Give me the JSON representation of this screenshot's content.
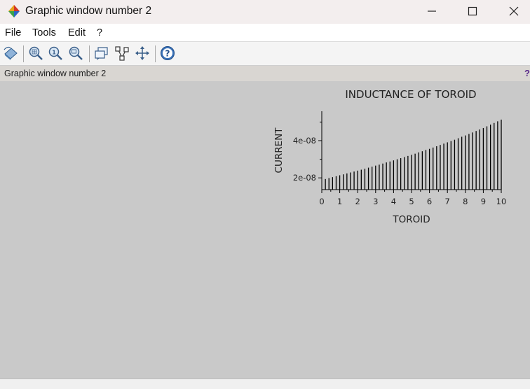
{
  "window": {
    "title": "Graphic window number 2"
  },
  "menu": {
    "items": [
      "File",
      "Tools",
      "Edit",
      "?"
    ]
  },
  "toolbar": {
    "icons": [
      "rotate-icon",
      "zoom-area-icon",
      "zoom-original-icon",
      "zoom-out-icon",
      "datatip-icon",
      "edit-plot-icon",
      "pan-icon",
      "help-icon"
    ]
  },
  "infobar": {
    "text": "Graphic window number 2",
    "help_glyph": "?"
  },
  "chart_data": {
    "type": "bar",
    "style": "stem",
    "title": "INDUCTANCE OF TOROID",
    "xlabel": "TOROID",
    "ylabel": "CURRENT",
    "xlim": [
      0,
      10
    ],
    "x_ticks": [
      0,
      1,
      2,
      3,
      4,
      5,
      6,
      7,
      8,
      9,
      10
    ],
    "y_ticks": [
      2e-08,
      4e-08
    ],
    "y_tick_labels": [
      "2e-08",
      "4e-08"
    ],
    "ylim": [
      1.37e-08,
      5.58e-08
    ],
    "x": [
      0.2,
      0.4,
      0.6,
      0.8,
      1.0,
      1.2,
      1.4,
      1.6,
      1.8,
      2.0,
      2.2,
      2.4,
      2.6,
      2.8,
      3.0,
      3.2,
      3.4,
      3.6,
      3.8,
      4.0,
      4.2,
      4.4,
      4.6,
      4.8,
      5.0,
      5.2,
      5.4,
      5.6,
      5.8,
      6.0,
      6.2,
      6.4,
      6.6,
      6.8,
      7.0,
      7.2,
      7.4,
      7.6,
      7.8,
      8.0,
      8.2,
      8.4,
      8.6,
      8.8,
      9.0,
      9.2,
      9.4,
      9.6,
      9.8,
      10.0
    ],
    "values": [
      1.94e-08,
      1.99e-08,
      2.04e-08,
      2.09e-08,
      2.14e-08,
      2.19e-08,
      2.24e-08,
      2.29e-08,
      2.34e-08,
      2.39e-08,
      2.44e-08,
      2.49e-08,
      2.55e-08,
      2.6e-08,
      2.66e-08,
      2.71e-08,
      2.77e-08,
      2.83e-08,
      2.88e-08,
      2.94e-08,
      3e-08,
      3.06e-08,
      3.12e-08,
      3.18e-08,
      3.24e-08,
      3.3e-08,
      3.37e-08,
      3.43e-08,
      3.5e-08,
      3.56e-08,
      3.63e-08,
      3.7e-08,
      3.77e-08,
      3.84e-08,
      3.91e-08,
      3.98e-08,
      4.05e-08,
      4.13e-08,
      4.21e-08,
      4.28e-08,
      4.36e-08,
      4.44e-08,
      4.52e-08,
      4.6e-08,
      4.68e-08,
      4.77e-08,
      4.86e-08,
      4.95e-08,
      5.04e-08,
      5.13e-08
    ]
  }
}
